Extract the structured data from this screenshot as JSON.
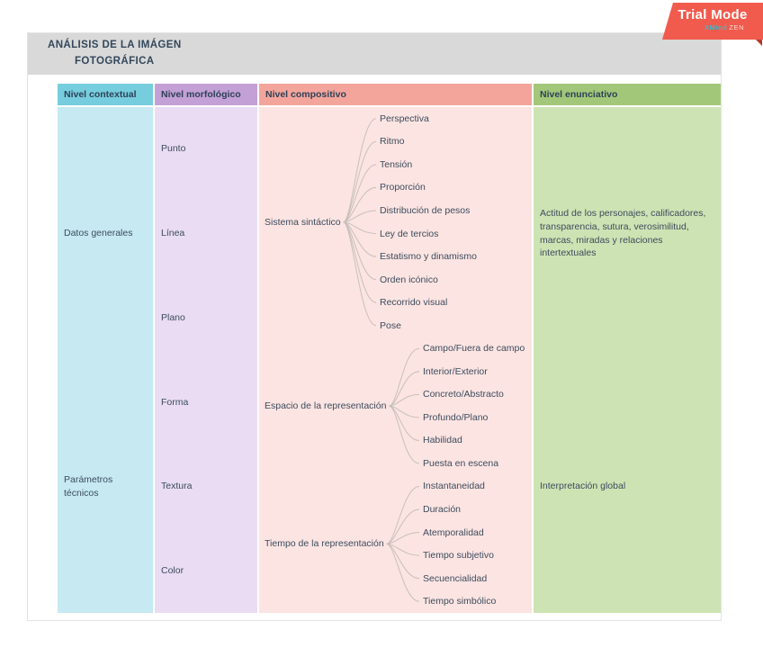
{
  "trial_badge": {
    "title": "Trial Mode",
    "brand": "XMind",
    "brand_suffix": "ZEN"
  },
  "title": {
    "line1": "ANÁLISIS DE LA IMÁGEN",
    "line2": "FOTOGRÁFICA"
  },
  "colors": {
    "header_contextual": "#76cddd",
    "header_morfologico": "#c3a0d6",
    "header_compositivo": "#f3a59c",
    "header_enunciativo": "#a3c779",
    "body_contextual": "#c6e9f2",
    "body_morfologico": "#eadcf2",
    "body_compositivo": "#fce4e2",
    "body_enunciativo": "#cee3b3",
    "badge": "#f15b4d",
    "text": "#3c4c5e",
    "connector": "#c7c0ba"
  },
  "columns": [
    {
      "id": "contextual",
      "header": "Nivel contextual",
      "items": [
        "Datos generales",
        "Parámetros técnicos"
      ]
    },
    {
      "id": "morfologico",
      "header": "Nivel morfológico",
      "items": [
        "Punto",
        "Línea",
        "Plano",
        "Forma",
        "Textura",
        "Color"
      ]
    },
    {
      "id": "compositivo",
      "header": "Nivel compositivo",
      "groups": [
        {
          "parent": "Sistema sintáctico",
          "children": [
            "Perspectiva",
            "Ritmo",
            "Tensión",
            "Proporción",
            "Distribución de pesos",
            "Ley de tercios",
            "Estatismo y dinamismo",
            "Orden icónico",
            "Recorrido visual",
            "Pose"
          ]
        },
        {
          "parent": "Espacio de la representación",
          "children": [
            "Campo/Fuera de campo",
            "Interior/Exterior",
            "Concreto/Abstracto",
            "Profundo/Plano",
            "Habilidad",
            "Puesta en escena"
          ]
        },
        {
          "parent": "Tiempo de la representación",
          "children": [
            "Instantaneidad",
            "Duración",
            "Atemporalidad",
            "Tiempo subjetivo",
            "Secuencialidad",
            "Tiempo simbólico"
          ]
        }
      ]
    },
    {
      "id": "enunciativo",
      "header": "Nivel enunciativo",
      "items": [
        "Actitud de los personajes, calificadores, transparencia, sutura, verosimilitud, marcas, miradas y relaciones intertextuales",
        "Interpretación global"
      ]
    }
  ]
}
